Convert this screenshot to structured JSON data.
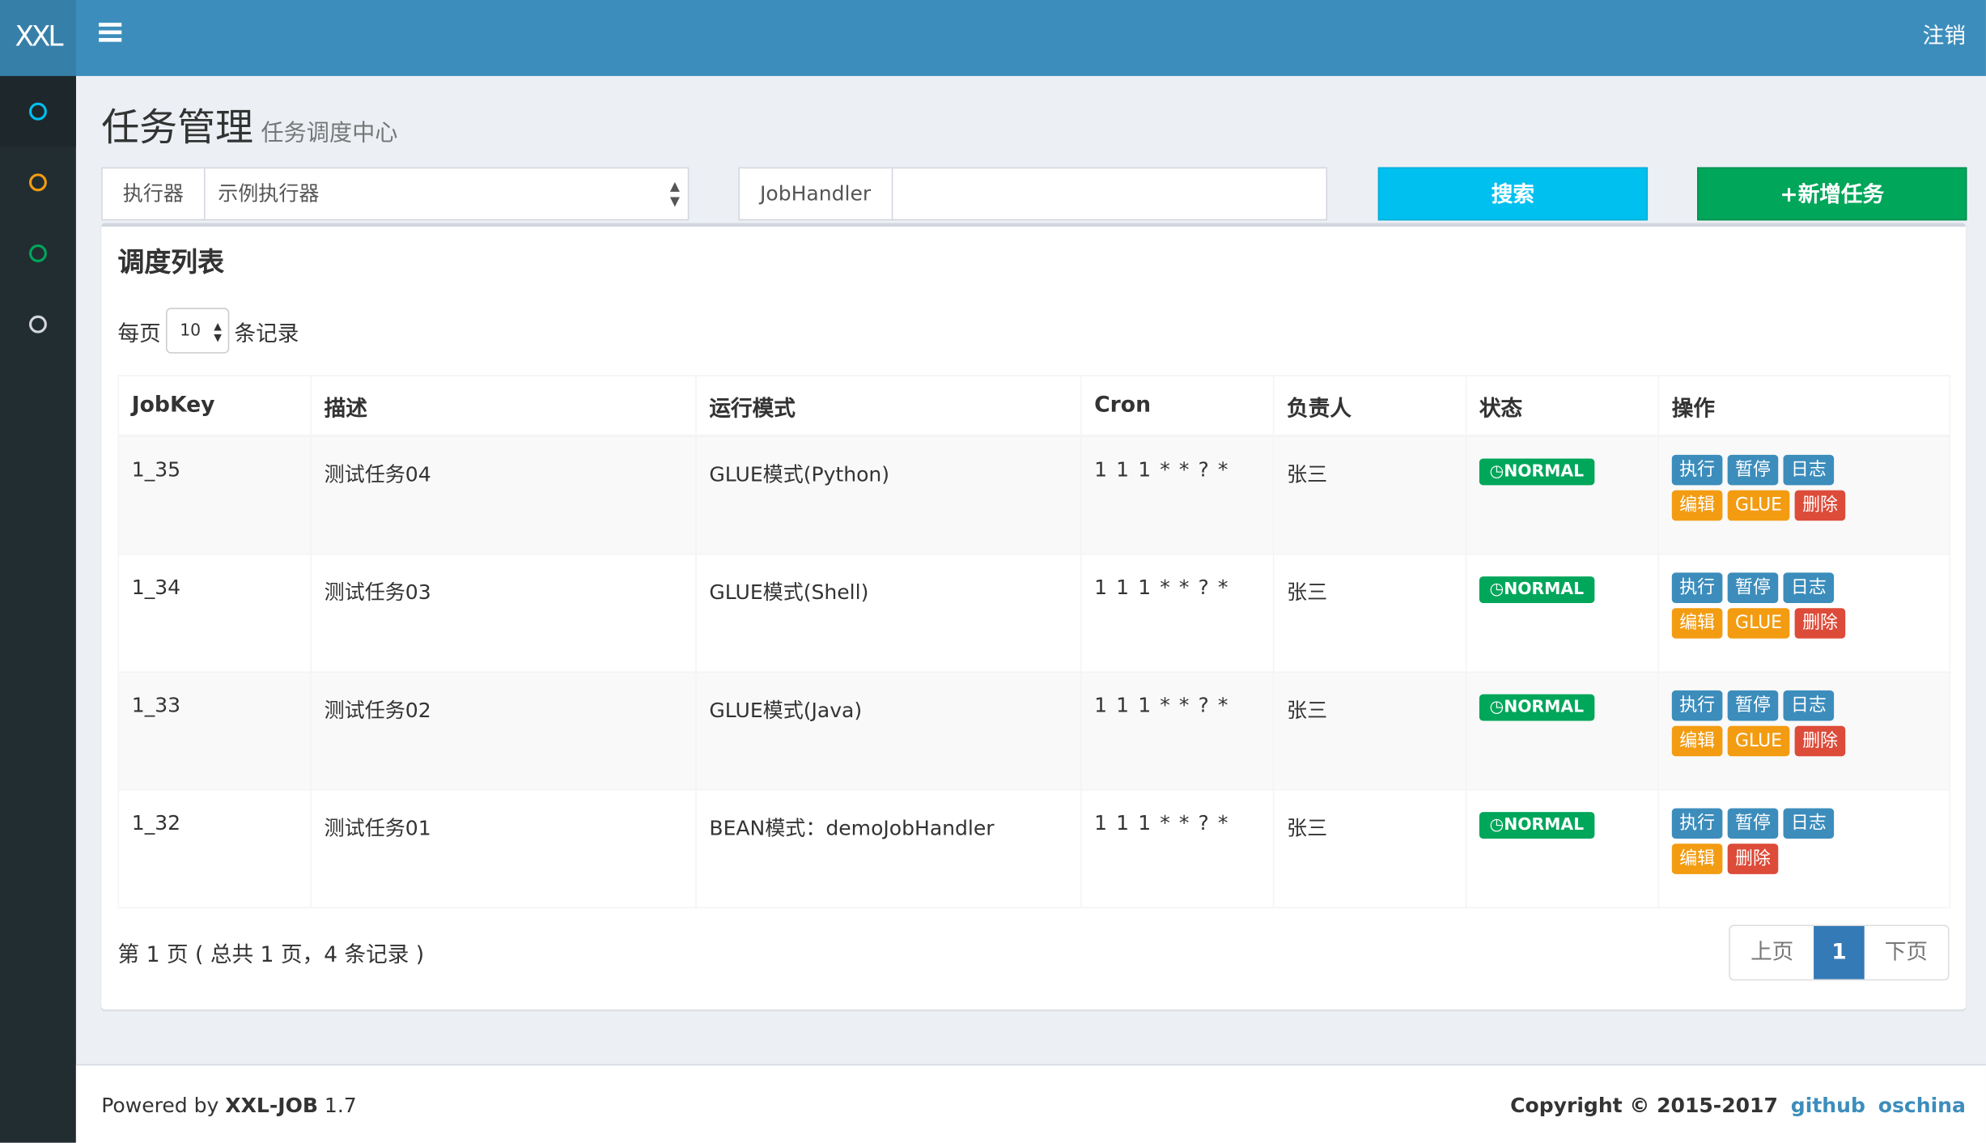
{
  "header": {
    "logo": "XXL",
    "logout": "注销"
  },
  "sidebar": {
    "items": [
      {
        "icon": "circle-icon",
        "color": "#00c0ef"
      },
      {
        "icon": "circle-icon",
        "color": "#f39c12"
      },
      {
        "icon": "circle-icon",
        "color": "#00a65a"
      },
      {
        "icon": "circle-icon",
        "color": "#d2d6de"
      }
    ]
  },
  "page": {
    "title": "任务管理",
    "subtitle": "任务调度中心"
  },
  "filters": {
    "executor_label": "执行器",
    "executor_value": "示例执行器",
    "jobhandler_label": "JobHandler",
    "jobhandler_value": "",
    "search": "搜索",
    "add": "+新增任务"
  },
  "box": {
    "title": "调度列表",
    "per_page_prefix": "每页",
    "per_page_value": "10",
    "per_page_suffix": "条记录"
  },
  "table": {
    "headers": [
      "JobKey",
      "描述",
      "运行模式",
      "Cron",
      "负责人",
      "状态",
      "操作"
    ],
    "rows": [
      {
        "key": "1_35",
        "desc": "测试任务04",
        "mode": "GLUE模式(Python)",
        "cron": "1 1 1 * * ? *",
        "owner": "张三",
        "status": "NORMAL",
        "glue": true
      },
      {
        "key": "1_34",
        "desc": "测试任务03",
        "mode": "GLUE模式(Shell)",
        "cron": "1 1 1 * * ? *",
        "owner": "张三",
        "status": "NORMAL",
        "glue": true
      },
      {
        "key": "1_33",
        "desc": "测试任务02",
        "mode": "GLUE模式(Java)",
        "cron": "1 1 1 * * ? *",
        "owner": "张三",
        "status": "NORMAL",
        "glue": true
      },
      {
        "key": "1_32",
        "desc": "测试任务01",
        "mode": "BEAN模式：demoJobHandler",
        "cron": "1 1 1 * * ? *",
        "owner": "张三",
        "status": "NORMAL",
        "glue": false
      }
    ],
    "actions": {
      "run": "执行",
      "pause": "暂停",
      "log": "日志",
      "edit": "编辑",
      "glue": "GLUE",
      "delete": "删除"
    }
  },
  "pagination": {
    "info": "第 1 页 ( 总共 1 页，4 条记录 )",
    "prev": "上页",
    "current": "1",
    "next": "下页"
  },
  "footer": {
    "powered_prefix": "Powered by ",
    "product": "XXL-JOB",
    "version": " 1.7",
    "copyright": "Copyright © 2015-2017",
    "github": "github",
    "oschina": "oschina"
  }
}
